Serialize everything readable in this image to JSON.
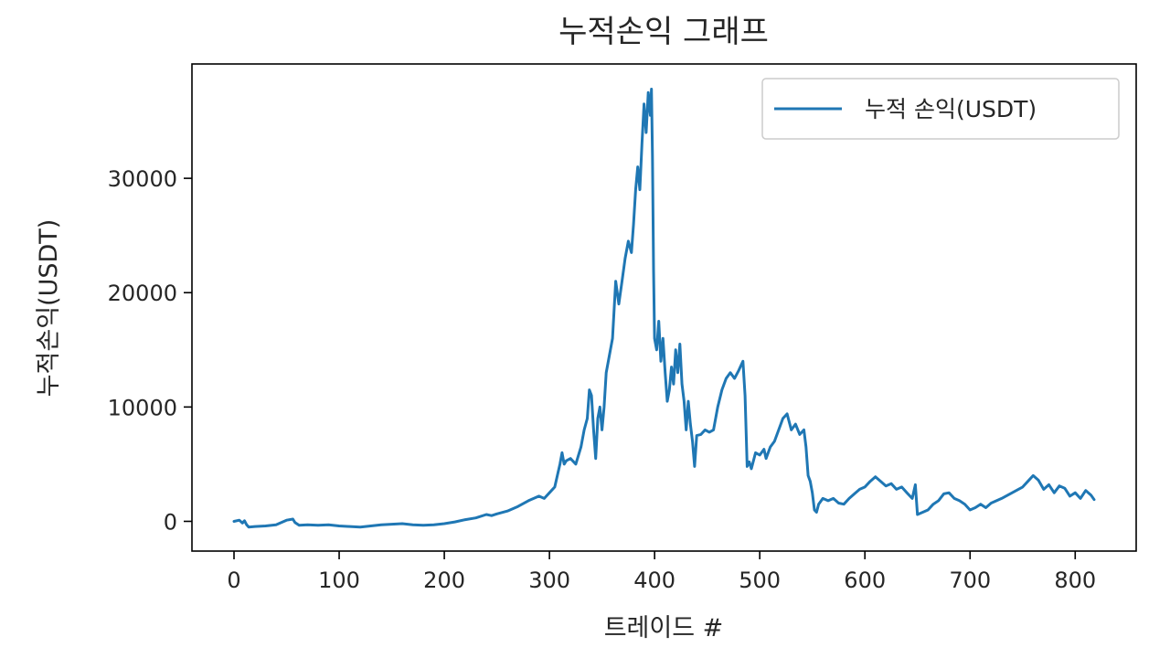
{
  "chart_data": {
    "type": "line",
    "title": "누적손익 그래프",
    "xlabel": "트레이드 #",
    "ylabel": "누적손익(USDT)",
    "xlim": [
      -40,
      858
    ],
    "ylim": [
      -2600,
      40000
    ],
    "xticks": [
      0,
      100,
      200,
      300,
      400,
      500,
      600,
      700,
      800
    ],
    "yticks": [
      0,
      10000,
      20000,
      30000
    ],
    "grid": false,
    "legend": {
      "placement": "top-right"
    },
    "series": [
      {
        "name": "누적 손익(USDT)",
        "color": "#1f77b4",
        "points": [
          [
            0,
            0
          ],
          [
            5,
            100
          ],
          [
            8,
            -150
          ],
          [
            10,
            50
          ],
          [
            12,
            -300
          ],
          [
            14,
            -500
          ],
          [
            20,
            -450
          ],
          [
            30,
            -400
          ],
          [
            40,
            -300
          ],
          [
            50,
            100
          ],
          [
            56,
            200
          ],
          [
            58,
            -100
          ],
          [
            62,
            -350
          ],
          [
            70,
            -300
          ],
          [
            80,
            -350
          ],
          [
            90,
            -300
          ],
          [
            100,
            -400
          ],
          [
            110,
            -450
          ],
          [
            120,
            -500
          ],
          [
            130,
            -400
          ],
          [
            140,
            -300
          ],
          [
            150,
            -250
          ],
          [
            160,
            -200
          ],
          [
            170,
            -300
          ],
          [
            180,
            -350
          ],
          [
            190,
            -300
          ],
          [
            200,
            -200
          ],
          [
            210,
            -50
          ],
          [
            220,
            150
          ],
          [
            230,
            300
          ],
          [
            240,
            600
          ],
          [
            245,
            500
          ],
          [
            250,
            650
          ],
          [
            260,
            900
          ],
          [
            270,
            1300
          ],
          [
            280,
            1800
          ],
          [
            290,
            2200
          ],
          [
            295,
            2000
          ],
          [
            300,
            2500
          ],
          [
            305,
            3000
          ],
          [
            308,
            4200
          ],
          [
            310,
            5000
          ],
          [
            312,
            6000
          ],
          [
            314,
            5000
          ],
          [
            316,
            5300
          ],
          [
            320,
            5500
          ],
          [
            325,
            5000
          ],
          [
            330,
            6500
          ],
          [
            333,
            8000
          ],
          [
            336,
            9000
          ],
          [
            338,
            11500
          ],
          [
            340,
            11000
          ],
          [
            342,
            8000
          ],
          [
            344,
            5500
          ],
          [
            346,
            9000
          ],
          [
            348,
            10000
          ],
          [
            350,
            8000
          ],
          [
            352,
            10000
          ],
          [
            354,
            13000
          ],
          [
            356,
            14000
          ],
          [
            360,
            16000
          ],
          [
            363,
            21000
          ],
          [
            366,
            19000
          ],
          [
            369,
            21000
          ],
          [
            372,
            23000
          ],
          [
            375,
            24500
          ],
          [
            378,
            23500
          ],
          [
            380,
            26000
          ],
          [
            382,
            29000
          ],
          [
            384,
            31000
          ],
          [
            386,
            29000
          ],
          [
            388,
            33000
          ],
          [
            390,
            36500
          ],
          [
            392,
            34000
          ],
          [
            394,
            37500
          ],
          [
            396,
            35500
          ],
          [
            397,
            37800
          ],
          [
            398,
            32000
          ],
          [
            399,
            22000
          ],
          [
            400,
            16000
          ],
          [
            402,
            15000
          ],
          [
            404,
            17500
          ],
          [
            406,
            14000
          ],
          [
            408,
            16000
          ],
          [
            410,
            13000
          ],
          [
            412,
            10500
          ],
          [
            414,
            11500
          ],
          [
            416,
            13500
          ],
          [
            418,
            12000
          ],
          [
            420,
            15000
          ],
          [
            422,
            13000
          ],
          [
            424,
            15500
          ],
          [
            426,
            12000
          ],
          [
            428,
            10500
          ],
          [
            430,
            8000
          ],
          [
            432,
            10500
          ],
          [
            434,
            8500
          ],
          [
            436,
            7000
          ],
          [
            438,
            4800
          ],
          [
            440,
            7500
          ],
          [
            444,
            7600
          ],
          [
            448,
            8000
          ],
          [
            452,
            7800
          ],
          [
            456,
            8000
          ],
          [
            460,
            10000
          ],
          [
            464,
            11500
          ],
          [
            468,
            12500
          ],
          [
            472,
            13000
          ],
          [
            476,
            12500
          ],
          [
            480,
            13200
          ],
          [
            484,
            14000
          ],
          [
            486,
            11000
          ],
          [
            488,
            4800
          ],
          [
            490,
            5200
          ],
          [
            492,
            4600
          ],
          [
            496,
            6000
          ],
          [
            500,
            5800
          ],
          [
            504,
            6300
          ],
          [
            506,
            5500
          ],
          [
            510,
            6500
          ],
          [
            514,
            7000
          ],
          [
            518,
            8000
          ],
          [
            522,
            9000
          ],
          [
            526,
            9400
          ],
          [
            530,
            8000
          ],
          [
            534,
            8500
          ],
          [
            538,
            7600
          ],
          [
            542,
            8000
          ],
          [
            544,
            6500
          ],
          [
            546,
            4000
          ],
          [
            548,
            3500
          ],
          [
            550,
            2500
          ],
          [
            552,
            1000
          ],
          [
            554,
            800
          ],
          [
            556,
            1500
          ],
          [
            560,
            2000
          ],
          [
            565,
            1800
          ],
          [
            570,
            2000
          ],
          [
            575,
            1600
          ],
          [
            580,
            1500
          ],
          [
            585,
            2000
          ],
          [
            590,
            2400
          ],
          [
            595,
            2800
          ],
          [
            600,
            3000
          ],
          [
            605,
            3500
          ],
          [
            610,
            3900
          ],
          [
            615,
            3500
          ],
          [
            620,
            3100
          ],
          [
            625,
            3300
          ],
          [
            630,
            2800
          ],
          [
            635,
            3000
          ],
          [
            640,
            2500
          ],
          [
            645,
            2000
          ],
          [
            648,
            3200
          ],
          [
            650,
            600
          ],
          [
            655,
            800
          ],
          [
            660,
            1000
          ],
          [
            665,
            1500
          ],
          [
            670,
            1800
          ],
          [
            675,
            2400
          ],
          [
            680,
            2500
          ],
          [
            685,
            2000
          ],
          [
            690,
            1800
          ],
          [
            695,
            1500
          ],
          [
            700,
            1000
          ],
          [
            705,
            1200
          ],
          [
            710,
            1500
          ],
          [
            715,
            1200
          ],
          [
            720,
            1600
          ],
          [
            730,
            2000
          ],
          [
            740,
            2500
          ],
          [
            750,
            3000
          ],
          [
            755,
            3500
          ],
          [
            760,
            4000
          ],
          [
            765,
            3600
          ],
          [
            770,
            2800
          ],
          [
            775,
            3200
          ],
          [
            780,
            2500
          ],
          [
            785,
            3100
          ],
          [
            790,
            2900
          ],
          [
            795,
            2200
          ],
          [
            800,
            2500
          ],
          [
            805,
            2000
          ],
          [
            810,
            2700
          ],
          [
            815,
            2300
          ],
          [
            818,
            1900
          ]
        ]
      }
    ]
  }
}
